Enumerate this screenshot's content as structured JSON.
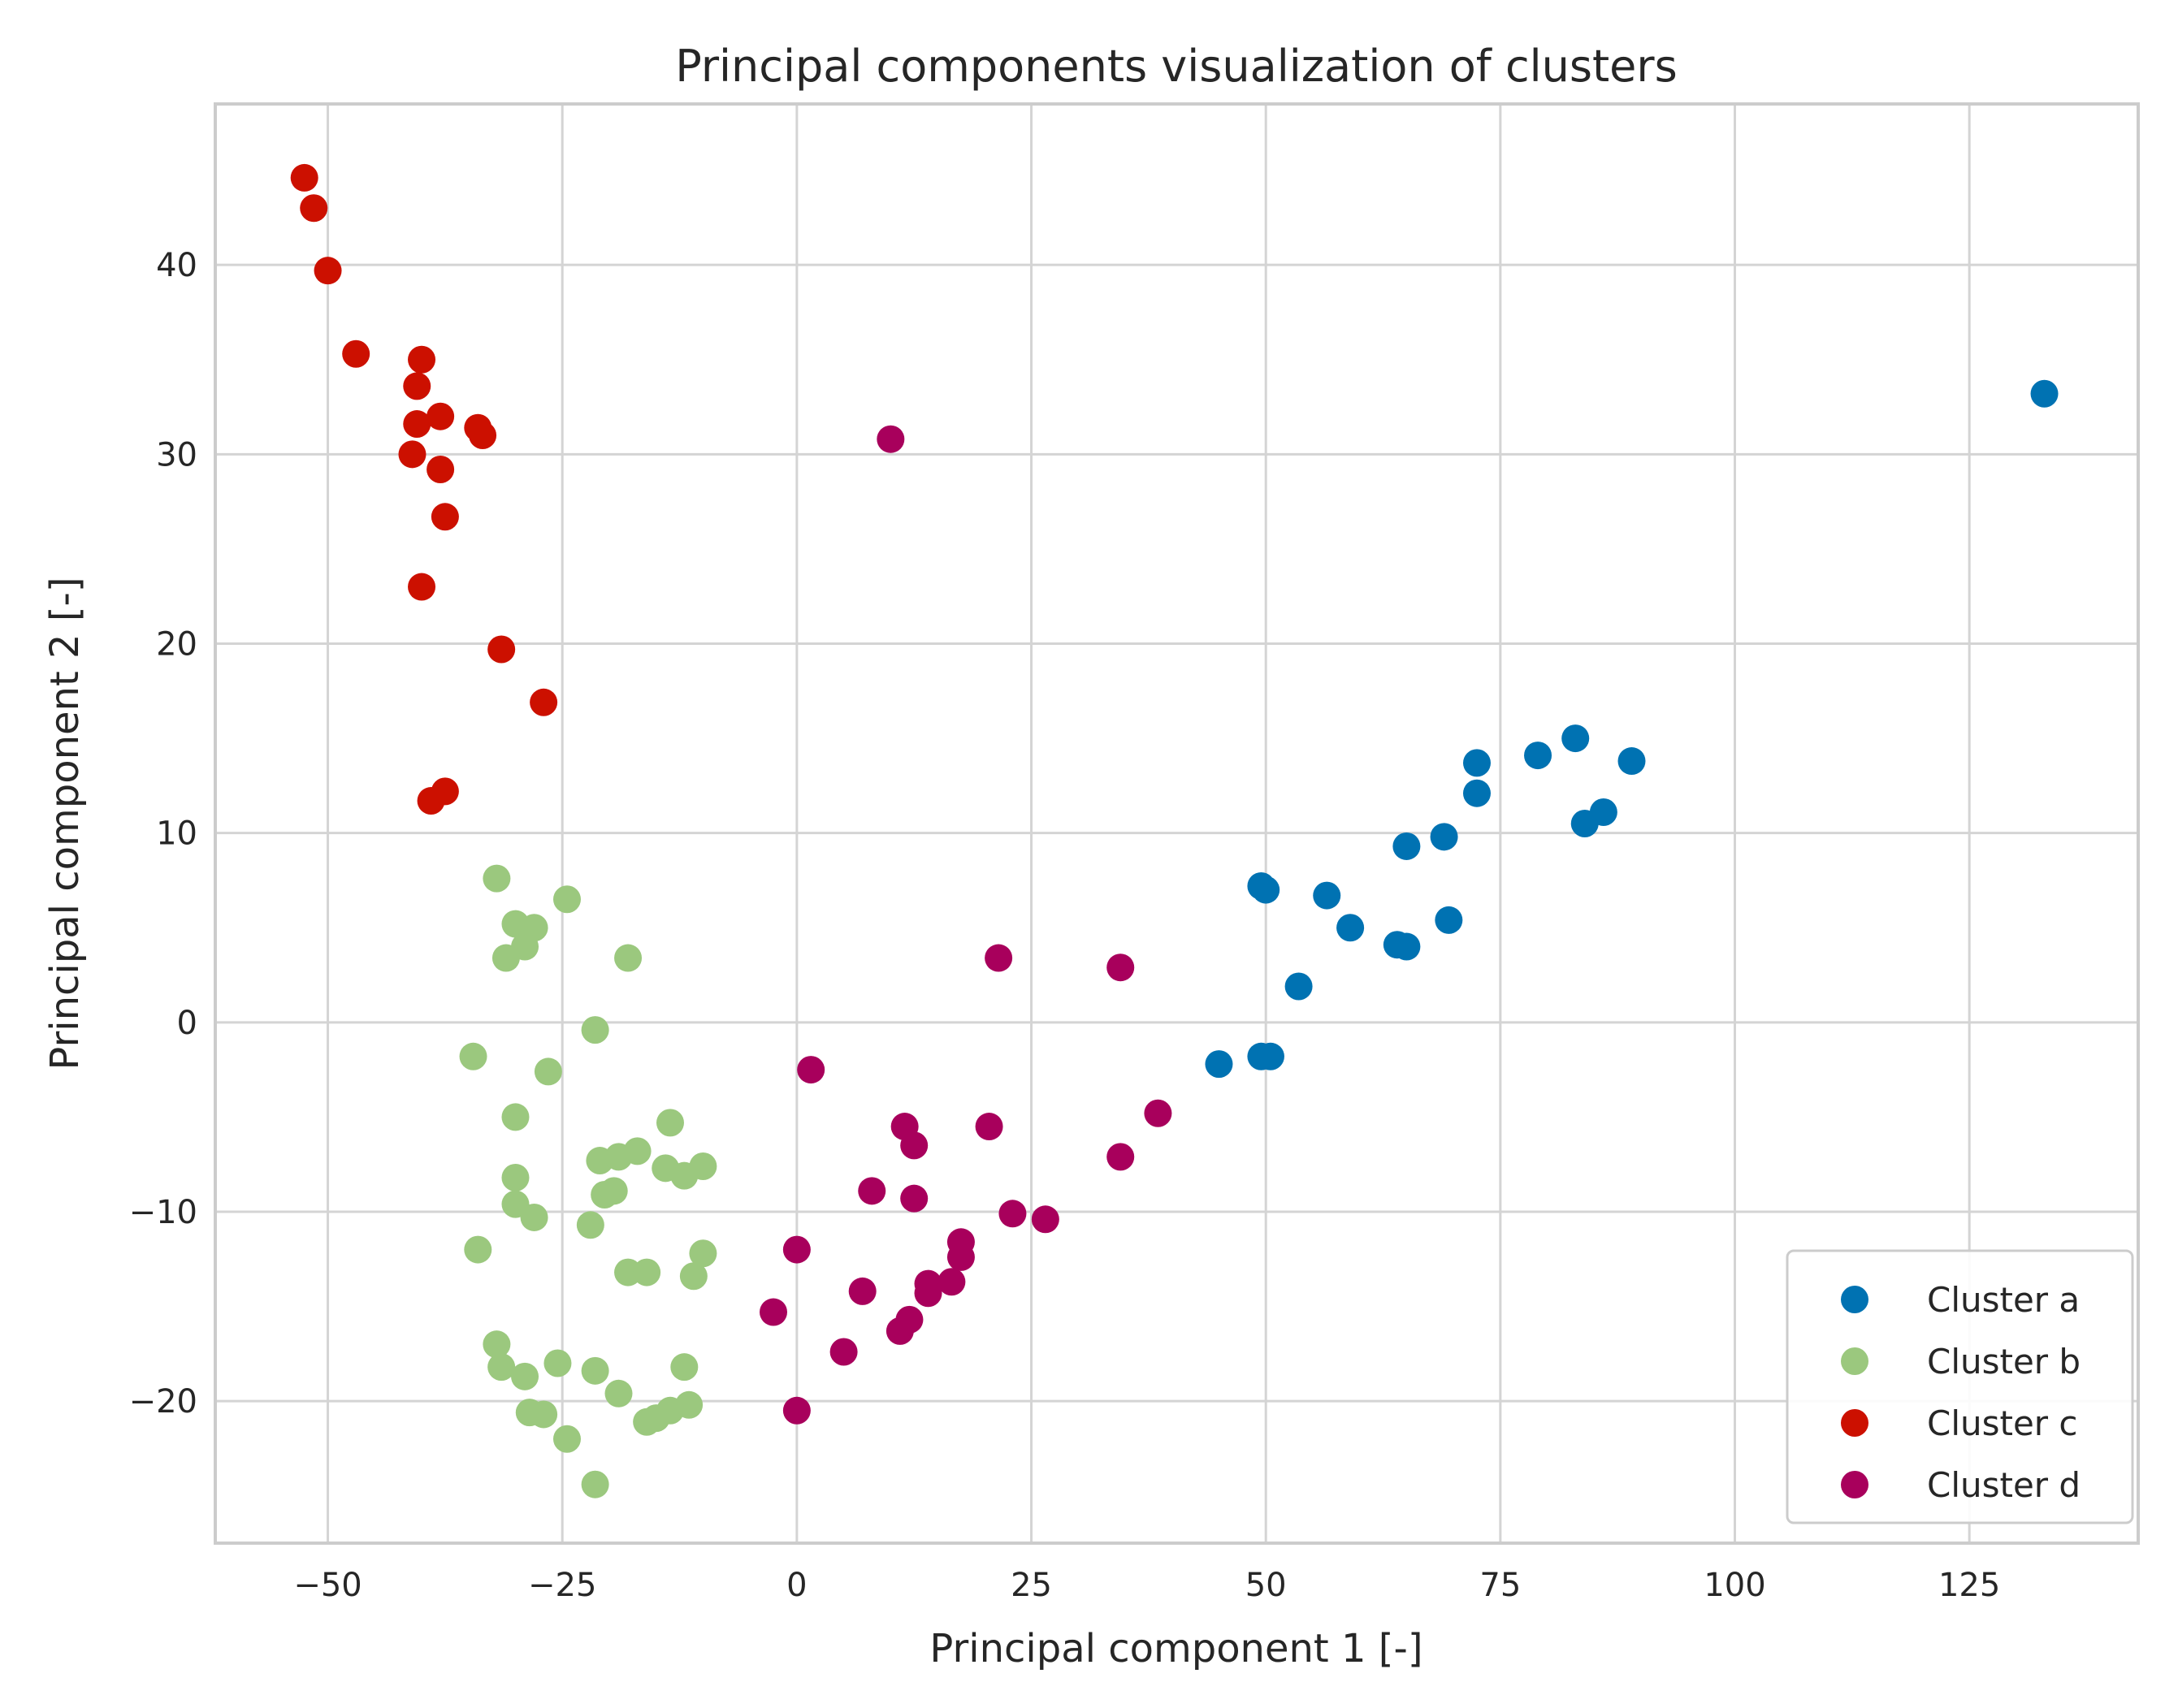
{
  "chart_data": {
    "type": "scatter",
    "title": "Principal components visualization of clusters",
    "xlabel": "Principal component 1 [-]",
    "ylabel": "Principal component 2 [-]",
    "xlim": [
      -62,
      143
    ],
    "ylim": [
      -27.5,
      48.5
    ],
    "xticks": [
      -50,
      -25,
      0,
      25,
      50,
      75,
      100,
      125
    ],
    "yticks": [
      -20,
      -10,
      0,
      10,
      20,
      30,
      40
    ],
    "xtick_labels": [
      "−50",
      "−25",
      "0",
      "25",
      "50",
      "75",
      "100",
      "125"
    ],
    "ytick_labels": [
      "−20",
      "−10",
      "0",
      "10",
      "20",
      "30",
      "40"
    ],
    "grid": true,
    "legend_position": "lower-right",
    "series": [
      {
        "name": "Cluster a",
        "color": "#0072b2",
        "x": [
          133,
          83,
          79,
          89,
          72.5,
          72.5,
          84,
          86,
          65,
          69,
          49.5,
          50,
          56.5,
          59,
          64,
          65,
          69.5,
          53.5,
          45,
          49.5,
          50.5
        ],
        "y": [
          33.2,
          15.0,
          14.1,
          13.8,
          13.7,
          12.1,
          10.5,
          11.1,
          9.3,
          9.8,
          7.2,
          7.0,
          6.7,
          5.0,
          4.1,
          4.0,
          5.4,
          1.9,
          -2.2,
          -1.8,
          -1.8
        ]
      },
      {
        "name": "Cluster b",
        "color": "#9bc87e",
        "x": [
          -32,
          -24.5,
          -30,
          -28,
          -29,
          -31,
          -18,
          -21.5,
          -34.5,
          -26.5,
          -30,
          -13.5,
          -21,
          -19,
          -17,
          -14,
          -12,
          -10,
          -30,
          -20.5,
          -19.5,
          -30,
          -28,
          -22,
          -34,
          -18,
          -16,
          -11,
          -10,
          -32,
          -31.5,
          -25.5,
          -29,
          -21.5,
          -12,
          -19,
          -28.5,
          -27,
          -15,
          -13.5,
          -11.5,
          -24.5,
          -16,
          -21.5
        ],
        "y": [
          7.6,
          6.5,
          5.2,
          5.0,
          4.0,
          3.4,
          3.4,
          -0.4,
          -1.8,
          -2.6,
          -5.0,
          -5.3,
          -7.3,
          -7.1,
          -6.8,
          -7.7,
          -8.1,
          -7.6,
          -8.2,
          -9.1,
          -8.9,
          -9.6,
          -10.3,
          -10.7,
          -12.0,
          -13.2,
          -13.2,
          -13.4,
          -12.2,
          -17.0,
          -18.2,
          -18.0,
          -18.7,
          -18.4,
          -18.2,
          -19.6,
          -20.6,
          -20.7,
          -20.9,
          -20.5,
          -20.2,
          -22.0,
          -21.1,
          -24.4
        ]
      },
      {
        "name": "Cluster c",
        "color": "#cc1000",
        "x": [
          -52.5,
          -51.5,
          -50,
          -47,
          -40,
          -40.5,
          -38,
          -40.5,
          -34,
          -33.5,
          -41,
          -38,
          -37.5,
          -40,
          -31.5,
          -27,
          -39,
          -37.5
        ],
        "y": [
          44.6,
          43.0,
          39.7,
          35.3,
          35.0,
          33.6,
          32.0,
          31.6,
          31.4,
          31.0,
          30.0,
          29.2,
          26.7,
          23.0,
          19.7,
          16.9,
          11.7,
          12.2
        ]
      },
      {
        "name": "Cluster d",
        "color": "#a8005c",
        "x": [
          10,
          21.5,
          34.5,
          1.5,
          38.5,
          11.5,
          12.5,
          20.5,
          34.5,
          8,
          12.5,
          23,
          26.5,
          17.5,
          0,
          17.5,
          16.5,
          14,
          14,
          7,
          12,
          11,
          -2.5,
          5,
          0
        ],
        "y": [
          30.8,
          3.4,
          2.9,
          -2.5,
          -4.8,
          -5.5,
          -6.5,
          -5.5,
          -7.1,
          -8.9,
          -9.3,
          -10.1,
          -10.4,
          -11.6,
          -12.0,
          -12.4,
          -13.7,
          -13.8,
          -14.3,
          -14.2,
          -15.7,
          -16.3,
          -15.3,
          -17.4,
          -20.5
        ]
      }
    ]
  }
}
